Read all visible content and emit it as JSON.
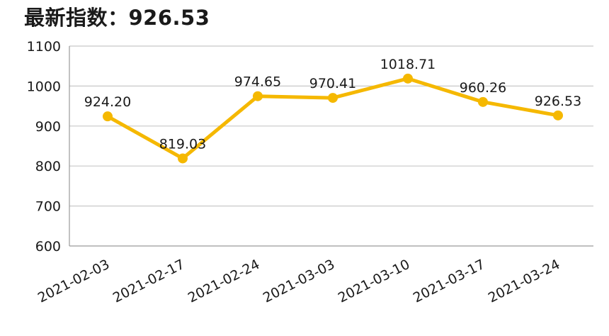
{
  "title": "最新指数：926.53",
  "chart_data": {
    "type": "line",
    "title": "最新指数：926.53",
    "xlabel": "",
    "ylabel": "",
    "categories": [
      "2021-02-03",
      "2021-02-17",
      "2021-02-24",
      "2021-03-03",
      "2021-03-10",
      "2021-03-17",
      "2021-03-24"
    ],
    "values": [
      924.2,
      819.03,
      974.65,
      970.41,
      1018.71,
      960.26,
      926.53
    ],
    "data_labels": [
      "924.20",
      "819.03",
      "974.65",
      "970.41",
      "1018.71",
      "960.26",
      "926.53"
    ],
    "ylim": [
      600,
      1100
    ],
    "yticks": [
      "600",
      "700",
      "800",
      "900",
      "1000",
      "1100"
    ],
    "grid": true,
    "line_color": "#F5B800",
    "grid_color": "#c8c8c8"
  }
}
